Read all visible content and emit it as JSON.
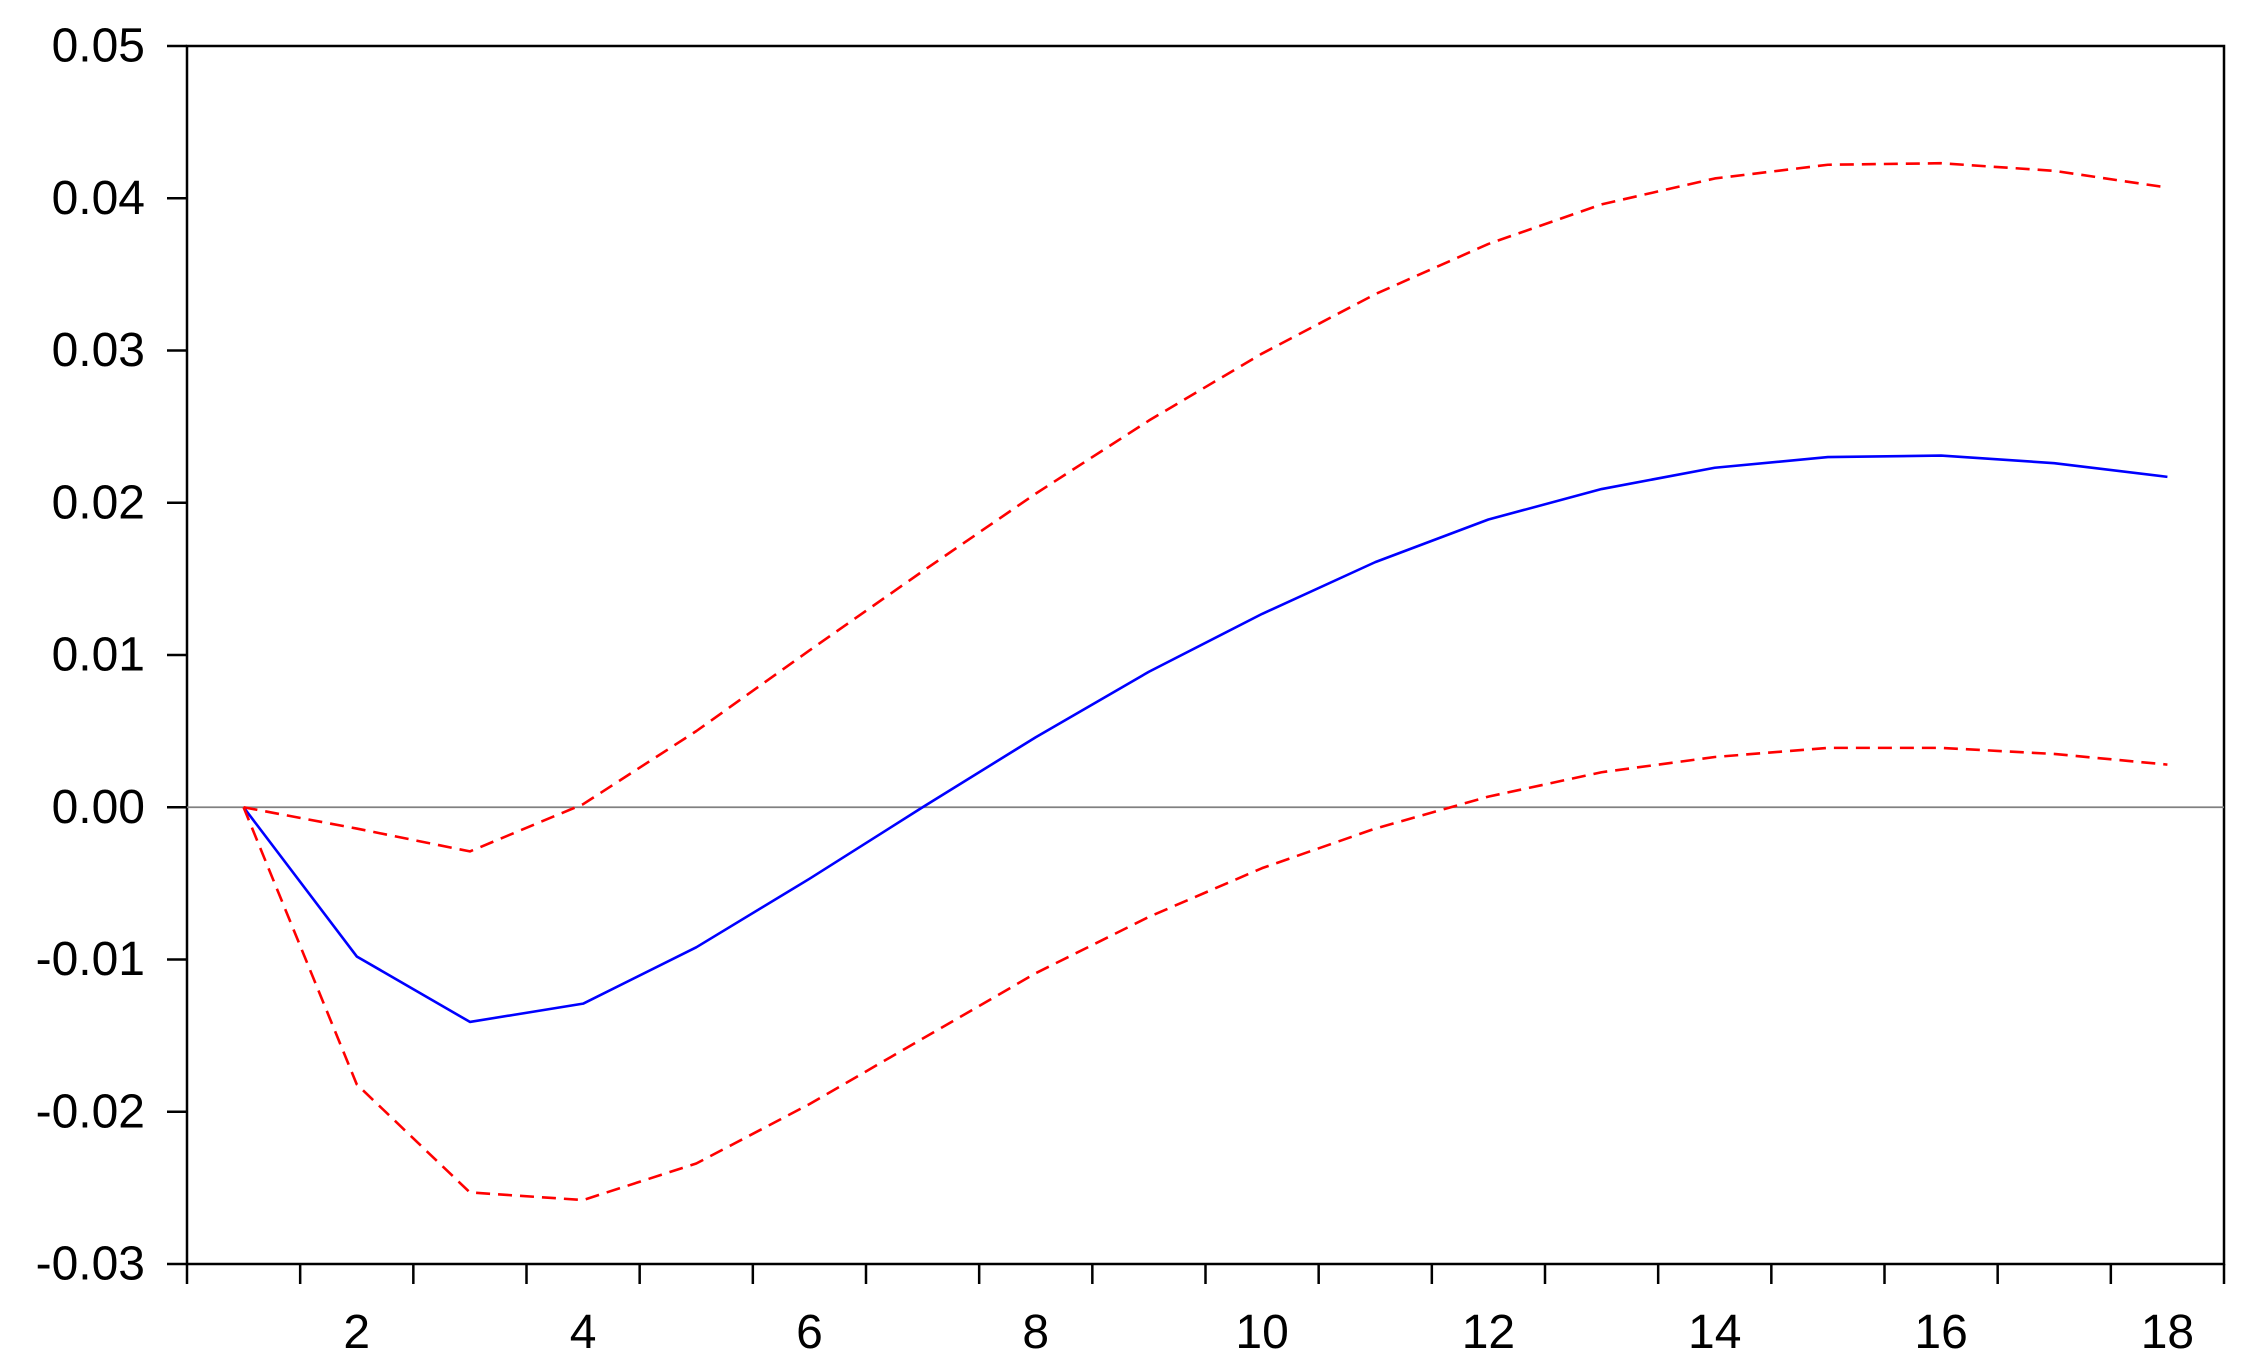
{
  "chart_data": {
    "type": "line",
    "title": "",
    "xlabel": "",
    "ylabel": "",
    "x": [
      1,
      2,
      3,
      4,
      5,
      6,
      7,
      8,
      9,
      10,
      11,
      12,
      13,
      14,
      15,
      16,
      17,
      18
    ],
    "xlim": [
      0.5,
      18.5
    ],
    "ylim": [
      -0.03,
      0.05
    ],
    "x_ticks": [
      1,
      2,
      3,
      4,
      5,
      6,
      7,
      8,
      9,
      10,
      11,
      12,
      13,
      14,
      15,
      16,
      17,
      18
    ],
    "x_tick_labels": [
      {
        "value": 2,
        "label": "2"
      },
      {
        "value": 4,
        "label": "4"
      },
      {
        "value": 6,
        "label": "6"
      },
      {
        "value": 8,
        "label": "8"
      },
      {
        "value": 10,
        "label": "10"
      },
      {
        "value": 12,
        "label": "12"
      },
      {
        "value": 14,
        "label": "14"
      },
      {
        "value": 16,
        "label": "16"
      },
      {
        "value": 18,
        "label": "18"
      }
    ],
    "y_tick_labels": [
      {
        "value": 0.05,
        "label": "0.05"
      },
      {
        "value": 0.04,
        "label": "0.04"
      },
      {
        "value": 0.03,
        "label": "0.03"
      },
      {
        "value": 0.02,
        "label": "0.02"
      },
      {
        "value": 0.01,
        "label": "0.01"
      },
      {
        "value": 0.0,
        "label": "0.00"
      },
      {
        "value": -0.01,
        "label": "-0.01"
      },
      {
        "value": -0.02,
        "label": "-0.02"
      },
      {
        "value": -0.03,
        "label": "-0.03"
      }
    ],
    "zero_line": true,
    "grid": false,
    "legend": "none",
    "series": [
      {
        "role": "response",
        "color": "#0000ff",
        "dash": "solid",
        "values": [
          0.0,
          -0.0098,
          -0.0141,
          -0.0129,
          -0.0092,
          -0.0047,
          0.0,
          0.0046,
          0.0089,
          0.0127,
          0.0161,
          0.0189,
          0.0209,
          0.0223,
          0.023,
          0.0231,
          0.0226,
          0.0217
        ]
      },
      {
        "role": "upper-band",
        "color": "#ff0000",
        "dash": "dashed",
        "values": [
          0.0,
          -0.0014,
          -0.0029,
          0.0002,
          0.005,
          0.0103,
          0.0155,
          0.0206,
          0.0254,
          0.0298,
          0.0337,
          0.037,
          0.0396,
          0.0413,
          0.0422,
          0.0423,
          0.0418,
          0.0407
        ]
      },
      {
        "role": "lower-band",
        "color": "#ff0000",
        "dash": "dashed",
        "values": [
          0.0,
          -0.0182,
          -0.0253,
          -0.0258,
          -0.0234,
          -0.0195,
          -0.0152,
          -0.0109,
          -0.0072,
          -0.004,
          -0.0014,
          0.0007,
          0.0023,
          0.0033,
          0.0039,
          0.0039,
          0.0035,
          0.0028
        ]
      }
    ]
  }
}
